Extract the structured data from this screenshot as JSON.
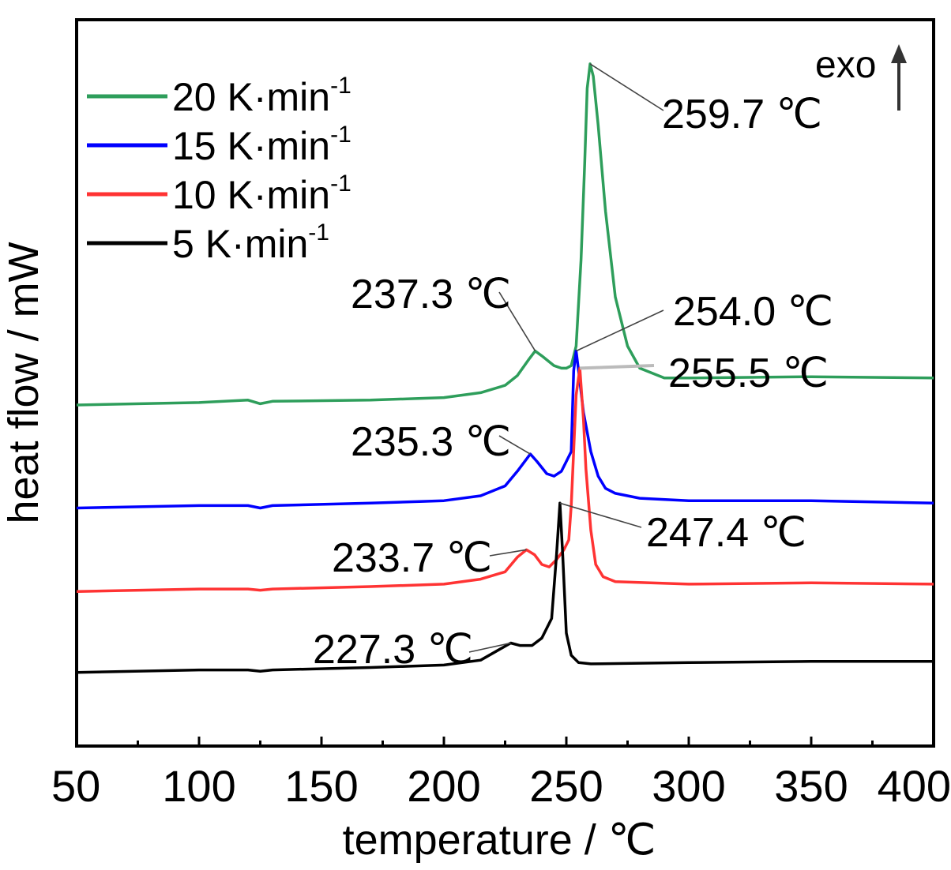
{
  "chart_data": {
    "type": "line",
    "xlabel": "temperature / ℃",
    "ylabel": "heat flow / mW",
    "xlim": [
      50,
      400
    ],
    "x_ticks": [
      "50",
      "100",
      "150",
      "200",
      "250",
      "300",
      "350",
      "400"
    ],
    "y_ticks": false,
    "grid": false,
    "legend_placement": "top-left",
    "direction_indicator": "exo",
    "legend": [
      {
        "base": "20 K·min",
        "sup": "-1",
        "color": "#2e9e5b"
      },
      {
        "base": "15 K·min",
        "sup": "-1",
        "color": "#0000ff"
      },
      {
        "base": "10 K·min",
        "sup": "-1",
        "color": "#ff3333"
      },
      {
        "base": "5 K·min",
        "sup": "-1",
        "color": "#000000"
      }
    ],
    "series": [
      {
        "name": "20 K·min-1",
        "color": "#2e9e5b",
        "x": [
          50,
          100,
          120,
          125,
          130,
          170,
          200,
          215,
          225,
          230,
          235,
          237.3,
          240,
          245,
          248,
          250,
          252,
          254,
          256,
          257.5,
          258.5,
          259.7,
          261,
          263,
          266,
          270,
          275,
          280,
          290,
          300,
          350,
          400
        ],
        "y": [
          0.81,
          0.82,
          0.83,
          0.815,
          0.825,
          0.83,
          0.84,
          0.86,
          0.89,
          0.93,
          1.0,
          1.03,
          1.01,
          0.97,
          0.96,
          0.96,
          0.97,
          1.05,
          1.4,
          1.8,
          2.1,
          2.2,
          2.15,
          1.95,
          1.6,
          1.25,
          1.05,
          0.96,
          0.92,
          0.92,
          0.925,
          0.92
        ]
      },
      {
        "name": "15 K·min-1",
        "color": "#0000ff",
        "x": [
          50,
          100,
          120,
          125,
          130,
          170,
          200,
          215,
          225,
          230,
          235.3,
          238,
          242,
          245,
          248,
          250,
          252,
          253,
          254.0,
          255,
          257,
          260,
          263,
          266,
          270,
          280,
          300,
          350,
          400
        ],
        "y": [
          0.39,
          0.4,
          0.4,
          0.39,
          0.4,
          0.41,
          0.42,
          0.44,
          0.48,
          0.54,
          0.61,
          0.58,
          0.53,
          0.52,
          0.54,
          0.58,
          0.62,
          0.95,
          1.03,
          0.95,
          0.78,
          0.62,
          0.52,
          0.47,
          0.45,
          0.43,
          0.42,
          0.42,
          0.41
        ]
      },
      {
        "name": "10 K·min-1",
        "color": "#ff3333",
        "x": [
          50,
          100,
          120,
          125,
          130,
          170,
          200,
          215,
          225,
          230,
          233.7,
          237,
          240,
          243,
          246,
          249,
          251,
          252,
          254,
          255.5,
          257,
          258,
          260,
          262,
          265,
          270,
          300,
          350,
          400
        ],
        "y": [
          0.05,
          0.06,
          0.06,
          0.055,
          0.06,
          0.07,
          0.08,
          0.1,
          0.13,
          0.19,
          0.22,
          0.2,
          0.16,
          0.15,
          0.18,
          0.22,
          0.26,
          0.4,
          0.85,
          0.96,
          0.75,
          0.55,
          0.3,
          0.16,
          0.11,
          0.09,
          0.08,
          0.085,
          0.08
        ]
      },
      {
        "name": "5 K·min-1",
        "color": "#000000",
        "x": [
          50,
          100,
          120,
          125,
          130,
          170,
          200,
          215,
          222,
          227.3,
          231,
          236,
          240,
          244,
          246,
          247.4,
          248.5,
          250,
          252,
          255,
          260,
          300,
          350,
          400
        ],
        "y": [
          -0.28,
          -0.27,
          -0.27,
          -0.275,
          -0.27,
          -0.26,
          -0.25,
          -0.23,
          -0.19,
          -0.16,
          -0.17,
          -0.17,
          -0.14,
          -0.06,
          0.2,
          0.41,
          0.2,
          -0.12,
          -0.21,
          -0.24,
          -0.245,
          -0.24,
          -0.235,
          -0.235
        ]
      }
    ],
    "annotations": [
      {
        "text": "259.7 ℃",
        "x": 259.7,
        "series": 0
      },
      {
        "text": "237.3 ℃",
        "x": 237.3,
        "series": 0
      },
      {
        "text": "254.0 ℃",
        "x": 254.0,
        "series": 1
      },
      {
        "text": "255.5 ℃",
        "x": 255.5,
        "series": 2
      },
      {
        "text": "235.3 ℃",
        "x": 235.3,
        "series": 1
      },
      {
        "text": "247.4 ℃",
        "x": 247.4,
        "series": 3
      },
      {
        "text": "233.7 ℃",
        "x": 233.7,
        "series": 2
      },
      {
        "text": "227.3 ℃",
        "x": 227.3,
        "series": 3
      }
    ]
  }
}
